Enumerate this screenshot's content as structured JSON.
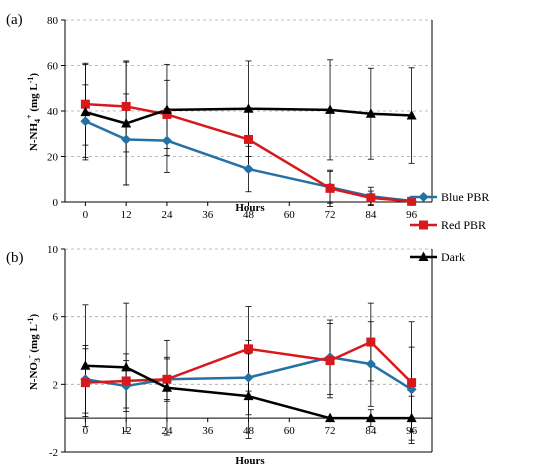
{
  "figure": {
    "panels": [
      {
        "label": "(a)",
        "ylabel_main": "N-NH",
        "ylabel_sub": "4",
        "ylabel_sup": "+",
        "ylabel_unit_pre": " (mg L",
        "ylabel_unit_sup": "-1",
        "ylabel_unit_post": ")"
      },
      {
        "label": "(b)",
        "ylabel_main": "N-NO",
        "ylabel_sub": "3",
        "ylabel_sup": "-",
        "ylabel_unit_pre": " (mg L",
        "ylabel_unit_sup": "-1",
        "ylabel_unit_post": ")"
      }
    ],
    "legend": [
      "Blue PBR",
      "Red PBR",
      "Dark"
    ]
  },
  "colors": {
    "blue": "#2472a4",
    "red": "#d7191c",
    "dark": "#000000",
    "grid": "#a6a6a6",
    "error": "#000000"
  },
  "chart_data": [
    {
      "type": "line",
      "panel": "(a)",
      "x": [
        0,
        12,
        24,
        48,
        72,
        84,
        96
      ],
      "xticks": [
        0,
        12,
        24,
        36,
        48,
        60,
        72,
        84,
        96
      ],
      "xlim": [
        -6,
        102
      ],
      "xlabel": "Hours",
      "ylabel": "N-NH4+ (mg L-1)",
      "ylim": [
        0,
        80
      ],
      "yticks": [
        0,
        20,
        40,
        60,
        80
      ],
      "grid": true,
      "legend": "right",
      "series": [
        {
          "name": "Blue PBR",
          "color": "blue",
          "marker": "diamond",
          "values": [
            35.5,
            27.5,
            27,
            14.5,
            6.5,
            2.5,
            0.5
          ],
          "errors": [
            16,
            20,
            14,
            10,
            7,
            4,
            1
          ]
        },
        {
          "name": "Red PBR",
          "color": "red",
          "marker": "square",
          "values": [
            43,
            42,
            38.5,
            27.5,
            6,
            1.8,
            0.3
          ],
          "errors": [
            18,
            20,
            15,
            14,
            8,
            3,
            1
          ]
        },
        {
          "name": "Dark",
          "color": "dark",
          "marker": "triangle",
          "values": [
            39.5,
            34.5,
            40.5,
            41,
            40.5,
            38.8,
            38
          ],
          "errors": [
            21,
            27,
            20,
            21,
            22,
            20,
            21
          ]
        }
      ]
    },
    {
      "type": "line",
      "panel": "(b)",
      "x": [
        0,
        12,
        24,
        48,
        72,
        84,
        96
      ],
      "xticks": [
        0,
        12,
        24,
        36,
        48,
        60,
        72,
        84,
        96
      ],
      "xlim": [
        -6,
        102
      ],
      "xlabel": "Hours",
      "ylabel": "N-NO3- (mg L-1)",
      "ylim": [
        -2,
        10
      ],
      "yticks": [
        -2,
        2,
        6,
        10
      ],
      "grid": true,
      "series": [
        {
          "name": "Blue PBR",
          "color": "blue",
          "marker": "diamond",
          "values": [
            2.3,
            1.9,
            2.3,
            2.4,
            3.6,
            3.2,
            1.7
          ],
          "errors": [
            2.0,
            1.5,
            1.2,
            2.2,
            2.2,
            2.5,
            2.5
          ]
        },
        {
          "name": "Red PBR",
          "color": "red",
          "marker": "square",
          "values": [
            2.1,
            2.2,
            2.3,
            4.1,
            3.4,
            4.5,
            2.1
          ],
          "errors": [
            2.0,
            1.6,
            1.3,
            2.5,
            2.2,
            2.3,
            3.6
          ]
        },
        {
          "name": "Dark",
          "color": "dark",
          "marker": "triangle",
          "values": [
            3.1,
            3.0,
            1.8,
            1.3,
            0,
            0,
            0
          ],
          "errors": [
            3.6,
            3.8,
            2.8,
            2.5,
            0,
            0.5,
            1.3
          ]
        }
      ]
    }
  ]
}
